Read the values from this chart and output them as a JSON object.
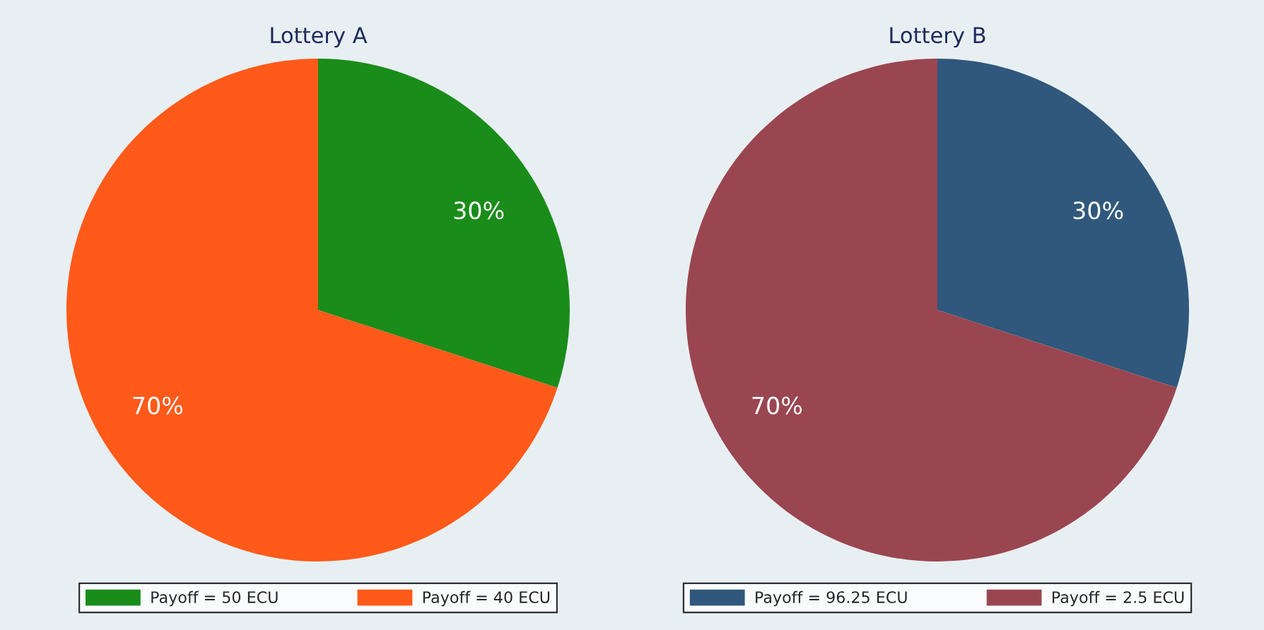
{
  "chart_data": [
    {
      "type": "pie",
      "title": "Lottery A",
      "categories": [
        "Payoff = 50 ECU",
        "Payoff = 40 ECU"
      ],
      "values": [
        30,
        70
      ],
      "colors": [
        "#1a8c1a",
        "#ff5a1a"
      ],
      "value_labels": [
        "30%",
        "70%"
      ],
      "legend": "bottom"
    },
    {
      "type": "pie",
      "title": "Lottery B",
      "categories": [
        "Payoff = 96.25 ECU",
        "Payoff = 2.5 ECU"
      ],
      "values": [
        30,
        70
      ],
      "colors": [
        "#30587c",
        "#9a4650"
      ],
      "value_labels": [
        "30%",
        "70%"
      ],
      "legend": "bottom"
    }
  ]
}
